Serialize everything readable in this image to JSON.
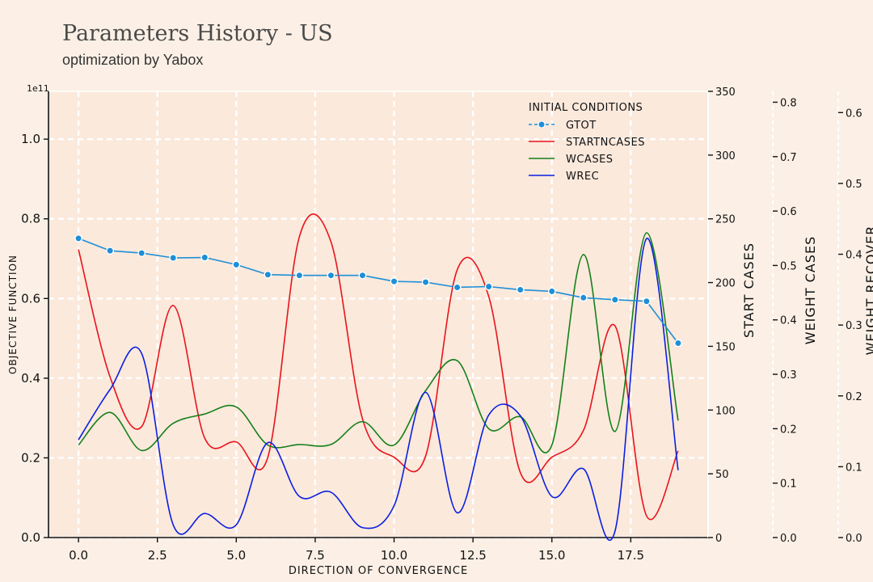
{
  "header": {
    "title": "Parameters History - US",
    "subtitle": "optimization by Yabox"
  },
  "chart_data": {
    "type": "line",
    "x": [
      0,
      1,
      2,
      3,
      4,
      5,
      6,
      7,
      8,
      9,
      10,
      11,
      12,
      13,
      14,
      15,
      16,
      17,
      18,
      19
    ],
    "xlabel": "DIRECTION OF CONVERGENCE",
    "xlim": [
      -0.95,
      19.95
    ],
    "xticks": [
      0.0,
      2.5,
      5.0,
      7.5,
      10.0,
      12.5,
      15.0,
      17.5
    ],
    "xtick_labels": [
      "0.0",
      "2.5",
      "5.0",
      "7.5",
      "10.0",
      "12.5",
      "15.0",
      "17.5"
    ],
    "grid": true,
    "axes": [
      {
        "id": "objective",
        "side": "left",
        "label": "OBJECTIVE FUNCTION",
        "multiplier": "1e11",
        "ylim": [
          0,
          1.12
        ],
        "ticks": [
          0.0,
          0.2,
          0.4,
          0.6,
          0.8,
          1.0
        ],
        "tick_labels": [
          "0.0",
          "0.2",
          "0.4",
          "0.6",
          "0.8",
          "1.0"
        ]
      },
      {
        "id": "start",
        "side": "right",
        "label": "START CASES",
        "ylim": [
          0,
          350
        ],
        "ticks": [
          0,
          50,
          100,
          150,
          200,
          250,
          300,
          350
        ],
        "tick_labels": [
          "0",
          "50",
          "100",
          "150",
          "200",
          "250",
          "300",
          "350"
        ]
      },
      {
        "id": "weight_cases",
        "side": "right",
        "label": "WEIGHT CASES",
        "ylim": [
          0,
          0.82
        ],
        "ticks": [
          0,
          0.1,
          0.2,
          0.3,
          0.4,
          0.5,
          0.6,
          0.7,
          0.8
        ],
        "tick_labels": [
          "0.0",
          "0.1",
          "0.2",
          "0.3",
          "0.4",
          "0.5",
          "0.6",
          "0.7",
          "0.8"
        ]
      },
      {
        "id": "weight_rec",
        "side": "right",
        "label": "WEIGHT RECOVER",
        "ylim": [
          0,
          0.63
        ],
        "ticks": [
          0,
          0.1,
          0.2,
          0.3,
          0.4,
          0.5,
          0.6
        ],
        "tick_labels": [
          "0.0",
          "0.1",
          "0.2",
          "0.3",
          "0.4",
          "0.5",
          "0.6"
        ]
      }
    ],
    "legend": {
      "title": "INITIAL CONDITIONS",
      "position": "top-right"
    },
    "series": [
      {
        "name": "GTOT",
        "axis": "objective",
        "color": "#1f8fd6",
        "marker": "circle",
        "values": [
          0.751,
          0.72,
          0.714,
          0.702,
          0.703,
          0.685,
          0.66,
          0.658,
          0.658,
          0.658,
          0.643,
          0.641,
          0.628,
          0.63,
          0.622,
          0.618,
          0.602,
          0.597,
          0.593,
          0.488
        ]
      },
      {
        "name": "STARTNCASES",
        "axis": "start",
        "color": "#e8141b",
        "values": [
          226,
          126,
          87,
          182,
          78,
          75,
          63,
          236,
          232,
          93,
          63,
          64,
          210,
          189,
          51,
          63,
          84,
          166,
          17,
          68
        ]
      },
      {
        "name": "WCASES",
        "axis": "weight_cases",
        "color": "#15801a",
        "values": [
          0.17,
          0.23,
          0.16,
          0.21,
          0.227,
          0.24,
          0.17,
          0.171,
          0.171,
          0.213,
          0.17,
          0.27,
          0.325,
          0.2,
          0.222,
          0.17,
          0.52,
          0.195,
          0.56,
          0.215
        ]
      },
      {
        "name": "WREC",
        "axis": "weight_rec",
        "color": "#0a1fe0",
        "values": [
          0.138,
          0.209,
          0.26,
          0.018,
          0.034,
          0.018,
          0.134,
          0.058,
          0.064,
          0.014,
          0.045,
          0.205,
          0.035,
          0.173,
          0.172,
          0.058,
          0.097,
          0.009,
          0.422,
          0.095
        ]
      }
    ]
  }
}
